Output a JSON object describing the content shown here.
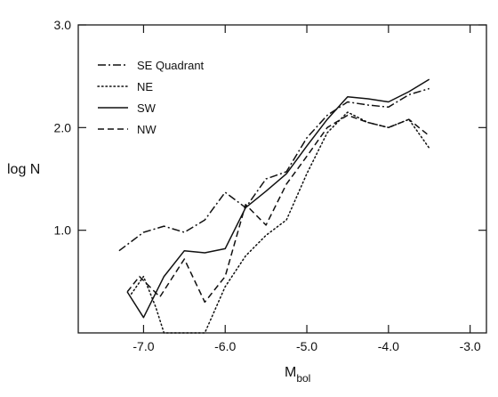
{
  "chart_data": {
    "type": "line",
    "title": "",
    "xlabel": "M",
    "xlabel_subscript": "bol",
    "ylabel": "log N",
    "xlim": [
      -7.8,
      -2.8
    ],
    "ylim": [
      0,
      3.0
    ],
    "x_ticks": [
      -7.0,
      -6.0,
      -5.0,
      -4.0,
      -3.0
    ],
    "x_tick_labels": [
      "-7.0",
      "-6.0",
      "-5.0",
      "-4.0",
      "-3.0"
    ],
    "y_ticks": [
      1.0,
      2.0,
      3.0
    ],
    "y_tick_labels": [
      "1.0",
      "2.0",
      "3.0"
    ],
    "grid": false,
    "legend_position": "top-left",
    "series": [
      {
        "name": "SE Quadrant",
        "style": "dashdot",
        "x": [
          -7.3,
          -7.0,
          -6.75,
          -6.5,
          -6.25,
          -6.0,
          -5.75,
          -5.5,
          -5.25,
          -5.0,
          -4.75,
          -4.5,
          -4.25,
          -4.0,
          -3.75,
          -3.5
        ],
        "y": [
          0.8,
          0.98,
          1.04,
          0.98,
          1.1,
          1.37,
          1.22,
          1.5,
          1.57,
          1.9,
          2.12,
          2.25,
          2.22,
          2.2,
          2.32,
          2.38
        ]
      },
      {
        "name": "NE",
        "style": "dotted",
        "x": [
          -7.15,
          -7.0,
          -6.85,
          -6.75,
          -6.5,
          -6.25,
          -6.0,
          -5.75,
          -5.5,
          -5.25,
          -5.0,
          -4.75,
          -4.5,
          -4.25,
          -4.0,
          -3.75,
          -3.5
        ],
        "y": [
          0.38,
          0.55,
          0.25,
          0.0,
          0.0,
          0.0,
          0.45,
          0.75,
          0.95,
          1.1,
          1.55,
          1.95,
          2.15,
          2.05,
          2.0,
          2.08,
          1.8
        ]
      },
      {
        "name": "SW",
        "style": "solid",
        "x": [
          -7.2,
          -7.0,
          -6.75,
          -6.5,
          -6.25,
          -6.0,
          -5.75,
          -5.5,
          -5.25,
          -5.0,
          -4.75,
          -4.5,
          -4.25,
          -4.0,
          -3.75,
          -3.5
        ],
        "y": [
          0.4,
          0.15,
          0.55,
          0.8,
          0.78,
          0.82,
          1.22,
          1.38,
          1.55,
          1.82,
          2.08,
          2.3,
          2.28,
          2.25,
          2.35,
          2.47
        ]
      },
      {
        "name": "NW",
        "style": "dashed",
        "x": [
          -7.2,
          -7.05,
          -6.8,
          -6.5,
          -6.25,
          -6.0,
          -5.75,
          -5.5,
          -5.25,
          -5.0,
          -4.75,
          -4.5,
          -4.25,
          -4.0,
          -3.75,
          -3.5
        ],
        "y": [
          0.4,
          0.55,
          0.35,
          0.72,
          0.3,
          0.55,
          1.25,
          1.05,
          1.45,
          1.72,
          2.0,
          2.12,
          2.05,
          2.0,
          2.08,
          1.92
        ]
      }
    ]
  }
}
